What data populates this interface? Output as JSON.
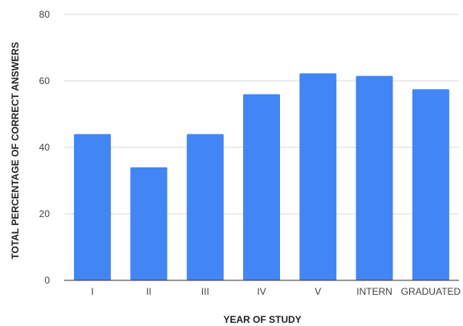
{
  "chart_data": {
    "type": "bar",
    "categories": [
      "I",
      "II",
      "III",
      "IV",
      "V",
      "INTERN",
      "GRADUATED"
    ],
    "values": [
      44,
      34,
      44,
      56,
      62.3,
      61.5,
      57.5
    ],
    "xlabel": "YEAR OF STUDY",
    "ylabel": "TOTAL PERCENTAGE OF CORRECT ANSWERS",
    "ylim": [
      0,
      80
    ],
    "yticks": [
      0,
      20,
      40,
      60,
      80
    ],
    "grid": true,
    "bar_color": "#4285f4"
  }
}
